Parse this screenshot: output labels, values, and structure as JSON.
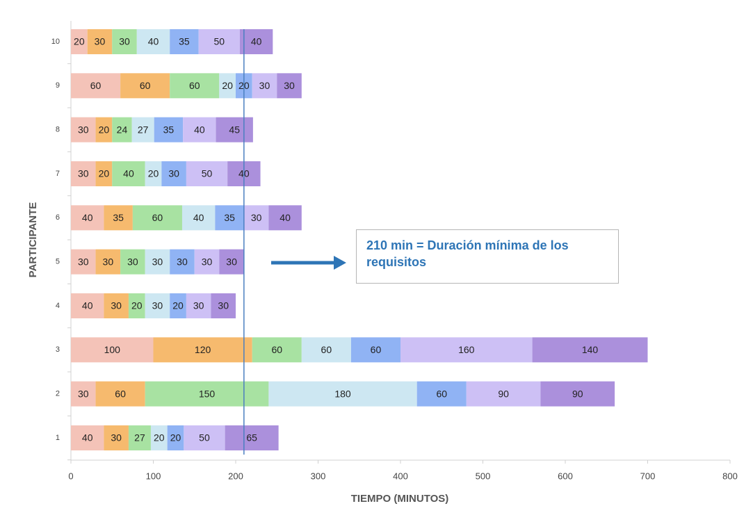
{
  "chart_data": {
    "type": "stacked_barh",
    "xlabel": "TIEMPO  (MINUTOS)",
    "ylabel": "PARTICIPANTE",
    "categories": [
      "1",
      "2",
      "3",
      "4",
      "5",
      "6",
      "7",
      "8",
      "9",
      "10"
    ],
    "series": [
      {
        "color": "#f4c3b8",
        "values": [
          40,
          30,
          100,
          40,
          30,
          40,
          30,
          30,
          60,
          20
        ]
      },
      {
        "color": "#f6ba6e",
        "values": [
          30,
          60,
          120,
          30,
          30,
          35,
          20,
          20,
          60,
          30
        ]
      },
      {
        "color": "#a8e2a2",
        "values": [
          27,
          150,
          60,
          20,
          30,
          60,
          40,
          24,
          60,
          30
        ]
      },
      {
        "color": "#cde7f2",
        "values": [
          20,
          180,
          60,
          30,
          30,
          40,
          20,
          27,
          20,
          40
        ]
      },
      {
        "color": "#90b3f4",
        "values": [
          20,
          60,
          60,
          20,
          30,
          35,
          30,
          35,
          20,
          35
        ]
      },
      {
        "color": "#cdc0f5",
        "values": [
          50,
          90,
          160,
          30,
          30,
          30,
          50,
          40,
          30,
          50
        ]
      },
      {
        "color": "#ab90dc",
        "values": [
          65,
          90,
          140,
          30,
          30,
          40,
          40,
          45,
          30,
          40
        ]
      }
    ],
    "xlim": [
      0,
      800
    ],
    "xticks": [
      0,
      100,
      200,
      300,
      400,
      500,
      600,
      700,
      800
    ],
    "reference_line": 210,
    "annotation": "210 min = Duración mínima de los requisitos"
  }
}
